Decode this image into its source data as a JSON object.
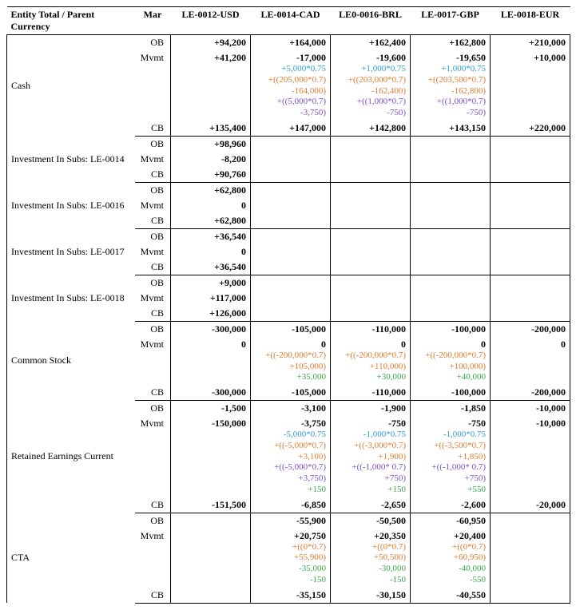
{
  "header": {
    "title": "Entity Total / Parent Currency",
    "period": "Mar",
    "entities": [
      "LE-0012-USD",
      "LE-0014-CAD",
      "LE0-0016-BRL",
      "LE-0017-GBP",
      "LE-0018-EUR"
    ]
  },
  "colors": {
    "main": "#000000",
    "blue": "#2e9bd6",
    "orange": "#e07b2e",
    "purple": "#7b4fc9",
    "green": "#3da64a"
  },
  "row_labels": {
    "ob": "OB",
    "mvmt": "Mvmt",
    "cb": "CB"
  },
  "accounts": [
    {
      "name": "Cash",
      "ob": [
        "+94,200",
        "+164,000",
        "+162,400",
        "+162,800",
        "+210,000"
      ],
      "mvmt": [
        "+41,200",
        "-17,000",
        "-19,600",
        "-19,650",
        "+10,000"
      ],
      "mvmt_calc": [
        [],
        [
          "+5,000*0.75",
          "+((205,000*0.7)",
          "-164,000)",
          "+((5,000*0.7)",
          "-3,750)"
        ],
        [
          "+1,000*0.75",
          "+((203,000*0.7)",
          "-162,400)",
          "+((1,000*0.7)",
          "-750)"
        ],
        [
          "+1,000*0.75",
          "+((203,500*0.7)",
          "-162,800)",
          "+((1,000*0.7)",
          "-750)"
        ],
        []
      ],
      "mvmt_calc_colors": [
        [],
        [
          "blue",
          "orange",
          "orange",
          "purple",
          "purple"
        ],
        [
          "blue",
          "orange",
          "orange",
          "purple",
          "purple"
        ],
        [
          "blue",
          "orange",
          "orange",
          "purple",
          "purple"
        ],
        []
      ],
      "cb": [
        "+135,400",
        "+147,000",
        "+142,800",
        "+143,150",
        "+220,000"
      ]
    },
    {
      "name": "Investment In Subs: LE-0014",
      "ob": [
        "+98,960",
        "",
        "",
        "",
        ""
      ],
      "mvmt": [
        "-8,200",
        "",
        "",
        "",
        ""
      ],
      "mvmt_calc": [
        [],
        [],
        [],
        [],
        []
      ],
      "mvmt_calc_colors": [
        [],
        [],
        [],
        [],
        []
      ],
      "cb": [
        "+90,760",
        "",
        "",
        "",
        ""
      ]
    },
    {
      "name": "Investment In Subs: LE-0016",
      "ob": [
        "+62,800",
        "",
        "",
        "",
        ""
      ],
      "mvmt": [
        "0",
        "",
        "",
        "",
        ""
      ],
      "mvmt_calc": [
        [],
        [],
        [],
        [],
        []
      ],
      "mvmt_calc_colors": [
        [],
        [],
        [],
        [],
        []
      ],
      "cb": [
        "+62,800",
        "",
        "",
        "",
        ""
      ]
    },
    {
      "name": "Investment In Subs: LE-0017",
      "ob": [
        "+36,540",
        "",
        "",
        "",
        ""
      ],
      "mvmt": [
        "0",
        "",
        "",
        "",
        ""
      ],
      "mvmt_calc": [
        [],
        [],
        [],
        [],
        []
      ],
      "mvmt_calc_colors": [
        [],
        [],
        [],
        [],
        []
      ],
      "cb": [
        "+36,540",
        "",
        "",
        "",
        ""
      ]
    },
    {
      "name": "Investment In Subs: LE-0018",
      "ob": [
        "+9,000",
        "",
        "",
        "",
        ""
      ],
      "mvmt": [
        "+117,000",
        "",
        "",
        "",
        ""
      ],
      "mvmt_calc": [
        [],
        [],
        [],
        [],
        []
      ],
      "mvmt_calc_colors": [
        [],
        [],
        [],
        [],
        []
      ],
      "cb": [
        "+126,000",
        "",
        "",
        "",
        ""
      ]
    },
    {
      "name": "Common Stock",
      "ob": [
        "-300,000",
        "-105,000",
        "-110,000",
        "-100,000",
        "-200,000"
      ],
      "mvmt": [
        "0",
        "0",
        "0",
        "0",
        "0"
      ],
      "mvmt_calc": [
        [],
        [
          "+((-200,000*0.7)",
          "+105,000)",
          "+35,000"
        ],
        [
          "+((-200,000*0.7)",
          "+110,000)",
          "+30,000"
        ],
        [
          "+((-200,000*0.7)",
          "+100,000)",
          "+40,000"
        ],
        []
      ],
      "mvmt_calc_colors": [
        [],
        [
          "orange",
          "orange",
          "green"
        ],
        [
          "orange",
          "orange",
          "green"
        ],
        [
          "orange",
          "orange",
          "green"
        ],
        []
      ],
      "cb": [
        "-300,000",
        "-105,000",
        "-110,000",
        "-100,000",
        "-200,000"
      ]
    },
    {
      "name": "Retained Earnings Current",
      "ob": [
        "-1,500",
        "-3,100",
        "-1,900",
        "-1,850",
        "-10,000"
      ],
      "mvmt": [
        "-150,000",
        "-3,750",
        "-750",
        "-750",
        "-10,000"
      ],
      "mvmt_calc": [
        [],
        [
          "-5,000*0.75",
          "+((-5,000*0.7)",
          "+3,100)",
          "+((-5,000*0.7)",
          "+3,750)",
          "+150"
        ],
        [
          "-1,000*0.75",
          "+((-3,000*0.7)",
          "+1,900)",
          "+((-1,000* 0.7)",
          "+750)",
          "+150"
        ],
        [
          "-1,000*0.75",
          "+((-3,500*0.7)",
          "+1,850)",
          "+((-1,000* 0.7)",
          "+750)",
          "+550"
        ],
        []
      ],
      "mvmt_calc_colors": [
        [],
        [
          "blue",
          "orange",
          "orange",
          "purple",
          "purple",
          "green"
        ],
        [
          "blue",
          "orange",
          "orange",
          "purple",
          "purple",
          "green"
        ],
        [
          "blue",
          "orange",
          "orange",
          "purple",
          "purple",
          "green"
        ],
        []
      ],
      "cb": [
        "-151,500",
        "-6,850",
        "-2,650",
        "-2,600",
        "-20,000"
      ]
    },
    {
      "name": "CTA",
      "ob": [
        "",
        "-55,900",
        "-50,500",
        "-60,950",
        ""
      ],
      "mvmt": [
        "",
        "+20,750",
        "+20,350",
        "+20,400",
        ""
      ],
      "mvmt_calc": [
        [],
        [
          "+((0*0.7)",
          "+55,900)",
          "-35,000",
          "-150"
        ],
        [
          "+((0*0.7)",
          "+50,500)",
          "-30,000",
          "-150"
        ],
        [
          "+((0*0.7)",
          "+60,950)",
          "-40,000",
          "-550"
        ],
        []
      ],
      "mvmt_calc_colors": [
        [],
        [
          "orange",
          "orange",
          "green",
          "green"
        ],
        [
          "orange",
          "orange",
          "green",
          "green"
        ],
        [
          "orange",
          "orange",
          "green",
          "green"
        ],
        []
      ],
      "cb": [
        "",
        "-35,150",
        "-30,150",
        "-40,550",
        ""
      ]
    }
  ]
}
